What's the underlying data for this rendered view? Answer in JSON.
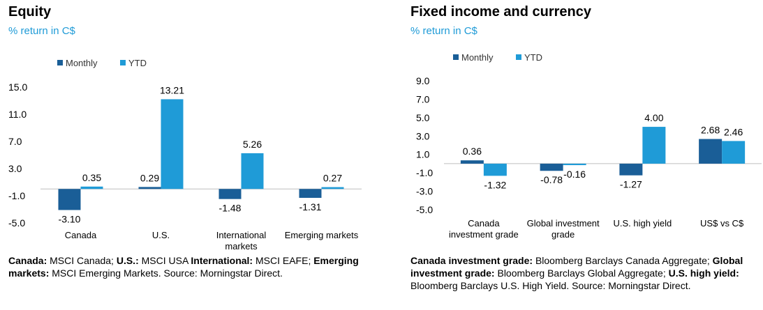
{
  "colors": {
    "monthly": "#1a5e97",
    "ytd": "#1f9bd7",
    "axis": "#bfbfbf"
  },
  "equity": {
    "title": "Equity",
    "subtitle": "% return in C$",
    "source": [
      {
        "bold": "Canada:",
        "text": " MSCI Canada; "
      },
      {
        "bold": "U.S.:",
        "text": " MSCI USA "
      },
      {
        "bold": "International:",
        "text": " MSCI EAFE; "
      },
      {
        "bold": "Emerging markets:",
        "text": " MSCI Emerging Markets. Source: Morningstar Direct."
      }
    ]
  },
  "fixed": {
    "title": "Fixed income and currency",
    "subtitle": "% return in C$",
    "source": [
      {
        "bold": "Canada investment grade:",
        "text": " Bloomberg Barclays Canada Aggregate; "
      },
      {
        "bold": "Global investment grade:",
        "text": " Bloomberg Barclays Global Aggregate; "
      },
      {
        "bold": "U.S. high yield:",
        "text": " Bloomberg Barclays U.S. High Yield. Source: Morningstar Direct."
      }
    ]
  },
  "chart_data": [
    {
      "type": "bar",
      "title": "Equity",
      "ylabel": "% return in C$",
      "categories": [
        [
          "Canada"
        ],
        [
          "U.S."
        ],
        [
          "International",
          "markets"
        ],
        [
          "Emerging markets"
        ]
      ],
      "series": [
        {
          "name": "Monthly",
          "values": [
            -3.1,
            0.29,
            -1.48,
            -1.31
          ],
          "labels": [
            "-3.10",
            "0.29",
            "-1.48",
            "-1.31"
          ]
        },
        {
          "name": "YTD",
          "values": [
            0.35,
            13.21,
            5.26,
            0.27
          ],
          "labels": [
            "0.35",
            "13.21",
            "5.26",
            "0.27"
          ]
        }
      ],
      "yticks": [
        "15.0",
        "11.0",
        "7.0",
        "3.0",
        "-1.0",
        "-5.0"
      ],
      "ylim": [
        -5.0,
        15.0
      ],
      "legend": "top-left"
    },
    {
      "type": "bar",
      "title": "Fixed income and currency",
      "ylabel": "% return in C$",
      "categories": [
        [
          "Canada",
          "investment grade"
        ],
        [
          "Global investment",
          "grade"
        ],
        [
          "U.S. high yield"
        ],
        [
          "US$ vs C$"
        ]
      ],
      "series": [
        {
          "name": "Monthly",
          "values": [
            0.36,
            -0.78,
            -1.27,
            2.68
          ],
          "labels": [
            "0.36",
            "-0.78",
            "-1.27",
            "2.68"
          ]
        },
        {
          "name": "YTD",
          "values": [
            -1.32,
            -0.16,
            4.0,
            2.46
          ],
          "labels": [
            "-1.32",
            "-0.16",
            "4.00",
            "2.46"
          ]
        }
      ],
      "yticks": [
        "9.0",
        "7.0",
        "5.0",
        "3.0",
        "1.0",
        "-1.0",
        "-3.0",
        "-5.0"
      ],
      "ylim": [
        -5.0,
        9.0
      ],
      "legend": "top-left"
    }
  ]
}
